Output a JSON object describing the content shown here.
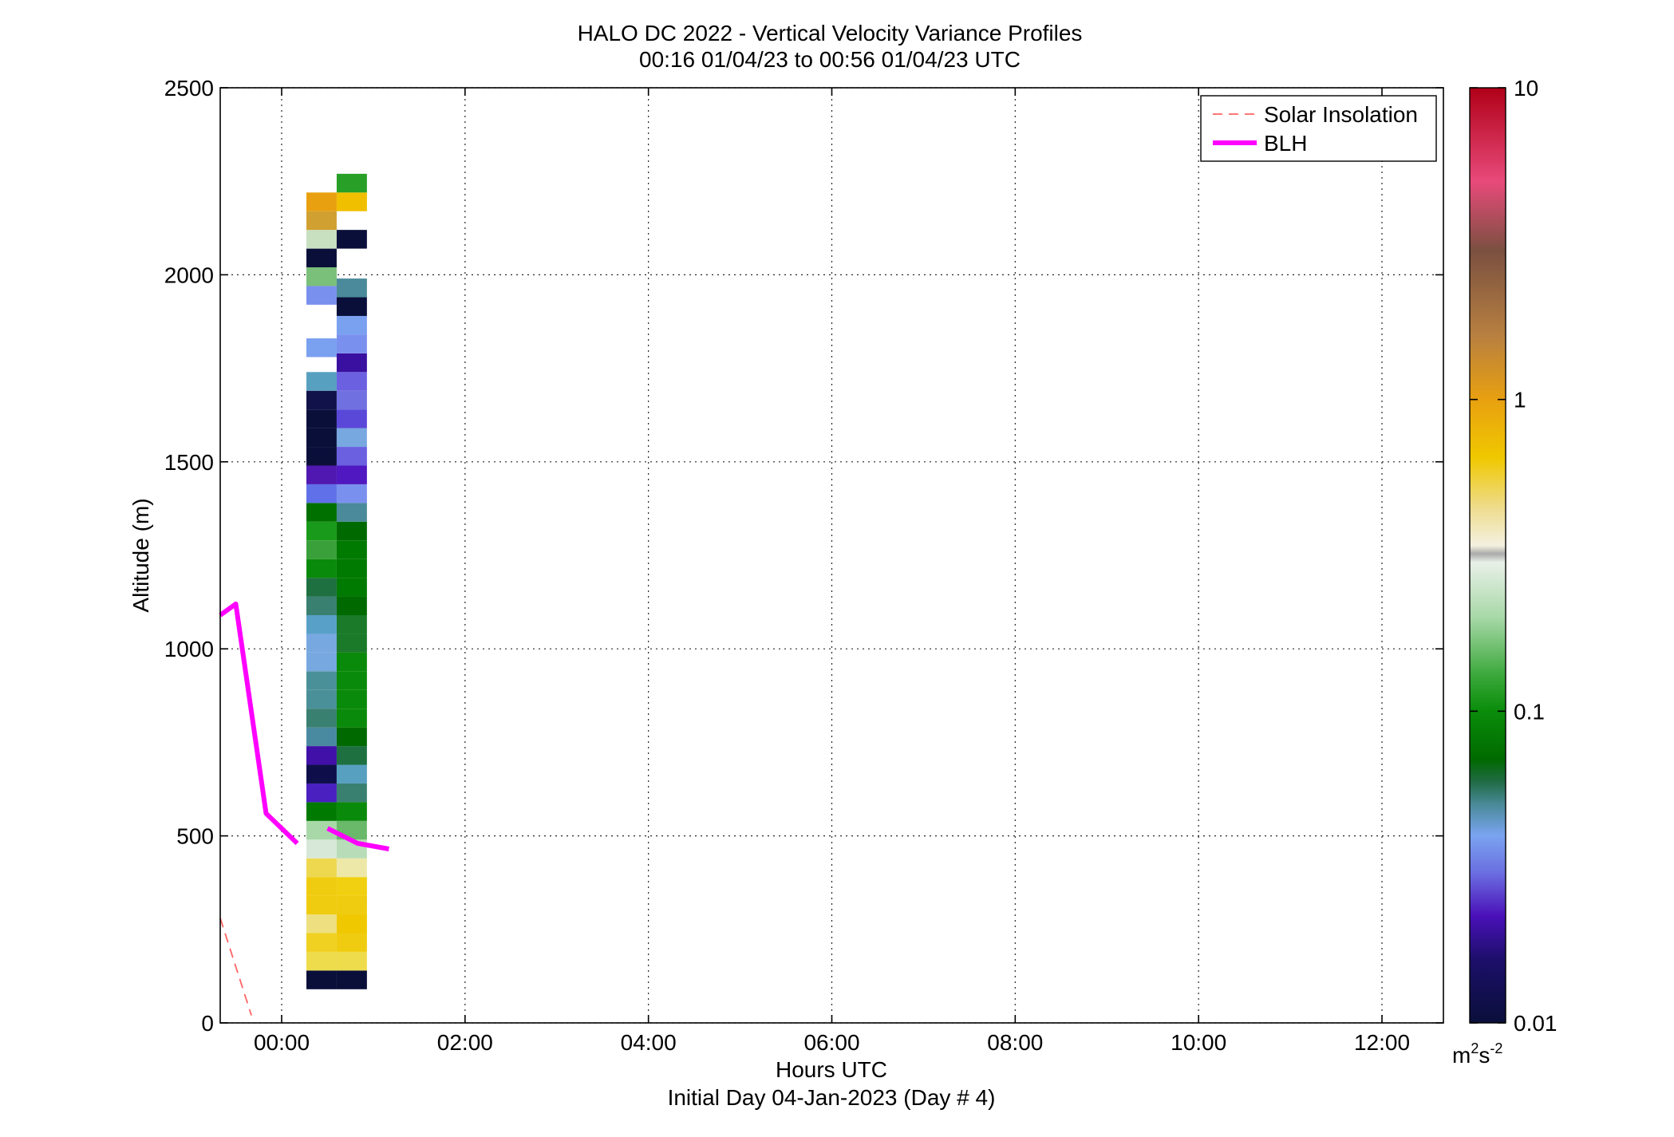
{
  "chart_data": {
    "type": "heatmap",
    "title": "HALO DC 2022 - Vertical Velocity Variance Profiles",
    "subtitle": "00:16 01/04/23 to 00:56 01/04/23  UTC",
    "xlabel": "Hours UTC",
    "xlabel2": "Initial Day 04-Jan-2023 (Day # 4)",
    "ylabel": "Altitude (m)",
    "xlim": [
      -0.67,
      12.67
    ],
    "ylim": [
      0,
      2500
    ],
    "x_ticks": [
      {
        "value": 0,
        "label": "00:00"
      },
      {
        "value": 2,
        "label": "02:00"
      },
      {
        "value": 4,
        "label": "04:00"
      },
      {
        "value": 6,
        "label": "06:00"
      },
      {
        "value": 8,
        "label": "08:00"
      },
      {
        "value": 10,
        "label": "10:00"
      },
      {
        "value": 12,
        "label": "12:00"
      }
    ],
    "y_ticks": [
      {
        "value": 0,
        "label": "0"
      },
      {
        "value": 500,
        "label": "500"
      },
      {
        "value": 1000,
        "label": "1000"
      },
      {
        "value": 1500,
        "label": "1500"
      },
      {
        "value": 2000,
        "label": "2000"
      },
      {
        "value": 2500,
        "label": "2500"
      }
    ],
    "grid": true,
    "colorbar": {
      "scale": "log",
      "range": [
        0.01,
        10
      ],
      "ticks": [
        {
          "value": 0.01,
          "label": "0.01"
        },
        {
          "value": 0.1,
          "label": "0.1"
        },
        {
          "value": 1,
          "label": "1"
        },
        {
          "value": 10,
          "label": "10"
        }
      ],
      "unit_base": "m",
      "unit_exp1": "2",
      "unit_mid": "s",
      "unit_exp2": "-2",
      "stops": [
        {
          "v": 0.01,
          "color": "#0a0f3a"
        },
        {
          "v": 0.016,
          "color": "#1c0f6a"
        },
        {
          "v": 0.022,
          "color": "#4a10b8"
        },
        {
          "v": 0.03,
          "color": "#6a6ce0"
        },
        {
          "v": 0.04,
          "color": "#7aa4f0"
        },
        {
          "v": 0.05,
          "color": "#4a8a9a"
        },
        {
          "v": 0.06,
          "color": "#1e6a40"
        },
        {
          "v": 0.07,
          "color": "#006a00"
        },
        {
          "v": 0.1,
          "color": "#0a8c0a"
        },
        {
          "v": 0.13,
          "color": "#3aa83a"
        },
        {
          "v": 0.2,
          "color": "#a8d8a8"
        },
        {
          "v": 0.3,
          "color": "#e8f0e8"
        },
        {
          "v": 0.32,
          "color": "#aaaaaa"
        },
        {
          "v": 0.34,
          "color": "#f4f0e0"
        },
        {
          "v": 0.45,
          "color": "#eedc8c"
        },
        {
          "v": 0.65,
          "color": "#f0c800"
        },
        {
          "v": 1.0,
          "color": "#e8a010"
        },
        {
          "v": 1.6,
          "color": "#b88040"
        },
        {
          "v": 3.0,
          "color": "#7a5040"
        },
        {
          "v": 5.0,
          "color": "#e84a7a"
        },
        {
          "v": 10.0,
          "color": "#b00018"
        }
      ]
    },
    "columns": [
      {
        "x0": 0.27,
        "x1": 0.6,
        "cells": [
          {
            "y0": 90,
            "y1": 140,
            "color": "#0a0f3a"
          },
          {
            "y0": 140,
            "y1": 190,
            "color": "#eedc4c"
          },
          {
            "y0": 190,
            "y1": 240,
            "color": "#f0d020"
          },
          {
            "y0": 240,
            "y1": 290,
            "color": "#eee080"
          },
          {
            "y0": 290,
            "y1": 340,
            "color": "#f0cc10"
          },
          {
            "y0": 340,
            "y1": 390,
            "color": "#f0cc10"
          },
          {
            "y0": 390,
            "y1": 440,
            "color": "#eed850"
          },
          {
            "y0": 440,
            "y1": 490,
            "color": "#d8e8d8"
          },
          {
            "y0": 490,
            "y1": 540,
            "color": "#a8d8a8"
          },
          {
            "y0": 540,
            "y1": 590,
            "color": "#007a00"
          },
          {
            "y0": 590,
            "y1": 640,
            "color": "#4a20c0"
          },
          {
            "y0": 640,
            "y1": 690,
            "color": "#0e0f4a"
          },
          {
            "y0": 690,
            "y1": 740,
            "color": "#4010a8"
          },
          {
            "y0": 740,
            "y1": 790,
            "color": "#4a8aa0"
          },
          {
            "y0": 790,
            "y1": 840,
            "color": "#3a8070"
          },
          {
            "y0": 840,
            "y1": 890,
            "color": "#4a9098"
          },
          {
            "y0": 890,
            "y1": 940,
            "color": "#4a9098"
          },
          {
            "y0": 940,
            "y1": 990,
            "color": "#78a8e0"
          },
          {
            "y0": 990,
            "y1": 1040,
            "color": "#78a8e0"
          },
          {
            "y0": 1040,
            "y1": 1090,
            "color": "#58a0c8"
          },
          {
            "y0": 1090,
            "y1": 1140,
            "color": "#3a8070"
          },
          {
            "y0": 1140,
            "y1": 1190,
            "color": "#1e7040"
          },
          {
            "y0": 1190,
            "y1": 1240,
            "color": "#0a8a0a"
          },
          {
            "y0": 1240,
            "y1": 1290,
            "color": "#3aa03a"
          },
          {
            "y0": 1290,
            "y1": 1340,
            "color": "#1a9a1a"
          },
          {
            "y0": 1340,
            "y1": 1390,
            "color": "#007000"
          },
          {
            "y0": 1390,
            "y1": 1440,
            "color": "#6070e8"
          },
          {
            "y0": 1440,
            "y1": 1490,
            "color": "#5018b0"
          },
          {
            "y0": 1490,
            "y1": 1540,
            "color": "#0a0f3a"
          },
          {
            "y0": 1540,
            "y1": 1590,
            "color": "#0a0f3a"
          },
          {
            "y0": 1590,
            "y1": 1640,
            "color": "#0a0f3a"
          },
          {
            "y0": 1640,
            "y1": 1690,
            "color": "#12124a"
          },
          {
            "y0": 1690,
            "y1": 1740,
            "color": "#58a0c0"
          },
          {
            "y0": 1780,
            "y1": 1830,
            "color": "#7aa0f0"
          },
          {
            "y0": 1920,
            "y1": 1970,
            "color": "#7a90ee"
          },
          {
            "y0": 1970,
            "y1": 2020,
            "color": "#7ac07a"
          },
          {
            "y0": 2020,
            "y1": 2070,
            "color": "#0a0f3a"
          },
          {
            "y0": 2070,
            "y1": 2120,
            "color": "#c8e0c0"
          },
          {
            "y0": 2120,
            "y1": 2170,
            "color": "#d0a030"
          },
          {
            "y0": 2170,
            "y1": 2220,
            "color": "#e8a010"
          }
        ]
      },
      {
        "x0": 0.6,
        "x1": 0.93,
        "cells": [
          {
            "y0": 90,
            "y1": 140,
            "color": "#0a0f3a"
          },
          {
            "y0": 140,
            "y1": 190,
            "color": "#eedc4c"
          },
          {
            "y0": 190,
            "y1": 240,
            "color": "#f0cc10"
          },
          {
            "y0": 240,
            "y1": 290,
            "color": "#f0c800"
          },
          {
            "y0": 290,
            "y1": 340,
            "color": "#f0cc10"
          },
          {
            "y0": 340,
            "y1": 390,
            "color": "#f0d010"
          },
          {
            "y0": 390,
            "y1": 440,
            "color": "#eee8a8"
          },
          {
            "y0": 440,
            "y1": 490,
            "color": "#b8dcb8"
          },
          {
            "y0": 490,
            "y1": 540,
            "color": "#6ab86a"
          },
          {
            "y0": 540,
            "y1": 590,
            "color": "#0a8a0a"
          },
          {
            "y0": 590,
            "y1": 640,
            "color": "#3a8070"
          },
          {
            "y0": 640,
            "y1": 690,
            "color": "#58a0c0"
          },
          {
            "y0": 690,
            "y1": 740,
            "color": "#1e7040"
          },
          {
            "y0": 740,
            "y1": 790,
            "color": "#006a00"
          },
          {
            "y0": 790,
            "y1": 840,
            "color": "#0a8a0a"
          },
          {
            "y0": 840,
            "y1": 890,
            "color": "#0a8a0a"
          },
          {
            "y0": 890,
            "y1": 940,
            "color": "#0a8a0a"
          },
          {
            "y0": 940,
            "y1": 990,
            "color": "#0a8a0a"
          },
          {
            "y0": 990,
            "y1": 1040,
            "color": "#1a7a2a"
          },
          {
            "y0": 1040,
            "y1": 1090,
            "color": "#1a7a2a"
          },
          {
            "y0": 1090,
            "y1": 1140,
            "color": "#006a00"
          },
          {
            "y0": 1140,
            "y1": 1190,
            "color": "#007a00"
          },
          {
            "y0": 1190,
            "y1": 1240,
            "color": "#007a00"
          },
          {
            "y0": 1240,
            "y1": 1290,
            "color": "#007a00"
          },
          {
            "y0": 1290,
            "y1": 1340,
            "color": "#006a00"
          },
          {
            "y0": 1340,
            "y1": 1390,
            "color": "#4a8a9a"
          },
          {
            "y0": 1390,
            "y1": 1440,
            "color": "#7a90ee"
          },
          {
            "y0": 1440,
            "y1": 1490,
            "color": "#5018c0"
          },
          {
            "y0": 1490,
            "y1": 1540,
            "color": "#6a60e0"
          },
          {
            "y0": 1540,
            "y1": 1590,
            "color": "#78a8e0"
          },
          {
            "y0": 1590,
            "y1": 1640,
            "color": "#5a48d8"
          },
          {
            "y0": 1640,
            "y1": 1690,
            "color": "#7070e0"
          },
          {
            "y0": 1690,
            "y1": 1740,
            "color": "#6a60e0"
          },
          {
            "y0": 1740,
            "y1": 1790,
            "color": "#3a10a0"
          },
          {
            "y0": 1790,
            "y1": 1840,
            "color": "#7a90ee"
          },
          {
            "y0": 1840,
            "y1": 1890,
            "color": "#7aa0f0"
          },
          {
            "y0": 1890,
            "y1": 1940,
            "color": "#0a0f3a"
          },
          {
            "y0": 1940,
            "y1": 1990,
            "color": "#4a8a9a"
          },
          {
            "y0": 2070,
            "y1": 2120,
            "color": "#0a0f3a"
          },
          {
            "y0": 2170,
            "y1": 2220,
            "color": "#f0c000"
          },
          {
            "y0": 2220,
            "y1": 2270,
            "color": "#28a028"
          }
        ]
      }
    ],
    "series": [
      {
        "name": "Solar Insolation",
        "style": "dashed",
        "color": "#ff6464",
        "segments": [
          [
            [
              -0.67,
              280
            ],
            [
              -0.33,
              20
            ]
          ]
        ]
      },
      {
        "name": "BLH",
        "style": "solid",
        "color": "#ff00ff",
        "segments": [
          [
            [
              -0.67,
              1090
            ],
            [
              -0.5,
              1120
            ],
            [
              -0.17,
              560
            ],
            [
              0.17,
              480
            ]
          ],
          [
            [
              0.5,
              520
            ],
            [
              0.83,
              480
            ],
            [
              1.17,
              465
            ]
          ]
        ]
      }
    ],
    "legend": {
      "position": "top-right",
      "entries": [
        "Solar Insolation",
        "BLH"
      ]
    }
  }
}
